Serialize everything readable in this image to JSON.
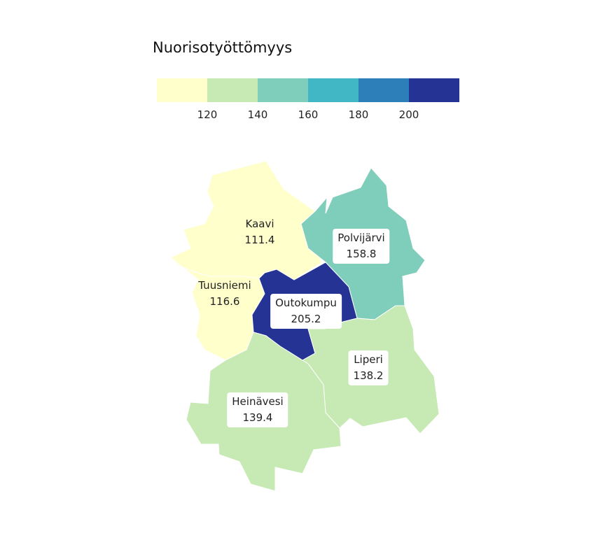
{
  "legend": {
    "title": "Nuorisotyöttömyys",
    "colors": [
      "#ffffcc",
      "#c7e9b4",
      "#7fcdbb",
      "#41b6c4",
      "#2c7fb8",
      "#253494"
    ],
    "ticks": [
      "120",
      "140",
      "160",
      "180",
      "200"
    ]
  },
  "regions": [
    {
      "name": "Kaavi",
      "value": "111.4",
      "color": "#ffffcc"
    },
    {
      "name": "Tuusniemi",
      "value": "116.6",
      "color": "#ffffcc"
    },
    {
      "name": "Polvijärvi",
      "value": "158.8",
      "color": "#7fcdbb"
    },
    {
      "name": "Outokumpu",
      "value": "205.2",
      "color": "#253494"
    },
    {
      "name": "Liperi",
      "value": "138.2",
      "color": "#c7e9b4"
    },
    {
      "name": "Heinävesi",
      "value": "139.4",
      "color": "#c7e9b4"
    }
  ]
}
